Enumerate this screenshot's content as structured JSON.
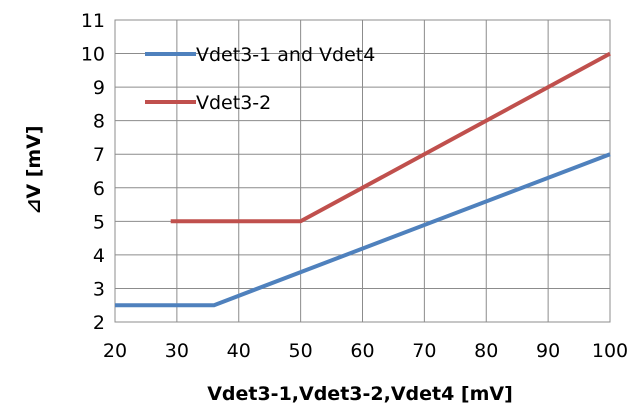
{
  "chart_data": {
    "type": "line",
    "title": "",
    "xlabel": "Vdet3-1,Vdet3-2,Vdet4 [mV]",
    "ylabel": "⊿V [mV]",
    "xlim": [
      20,
      100
    ],
    "ylim": [
      2,
      11
    ],
    "xticks": [
      "20",
      "30",
      "40",
      "50",
      "60",
      "70",
      "80",
      "90",
      "100"
    ],
    "yticks": [
      "2",
      "3",
      "4",
      "5",
      "6",
      "7",
      "8",
      "9",
      "10",
      "11"
    ],
    "grid": true,
    "legend_position": "top-left",
    "series": [
      {
        "name": "Vdet3-1 and Vdet4",
        "color": "#4f81bd",
        "points": [
          [
            20,
            2.5
          ],
          [
            36,
            2.5
          ],
          [
            100,
            7
          ]
        ]
      },
      {
        "name": "Vdet3-2",
        "color": "#c0504d",
        "points": [
          [
            29,
            5
          ],
          [
            50,
            5
          ],
          [
            100,
            10
          ]
        ]
      }
    ]
  }
}
